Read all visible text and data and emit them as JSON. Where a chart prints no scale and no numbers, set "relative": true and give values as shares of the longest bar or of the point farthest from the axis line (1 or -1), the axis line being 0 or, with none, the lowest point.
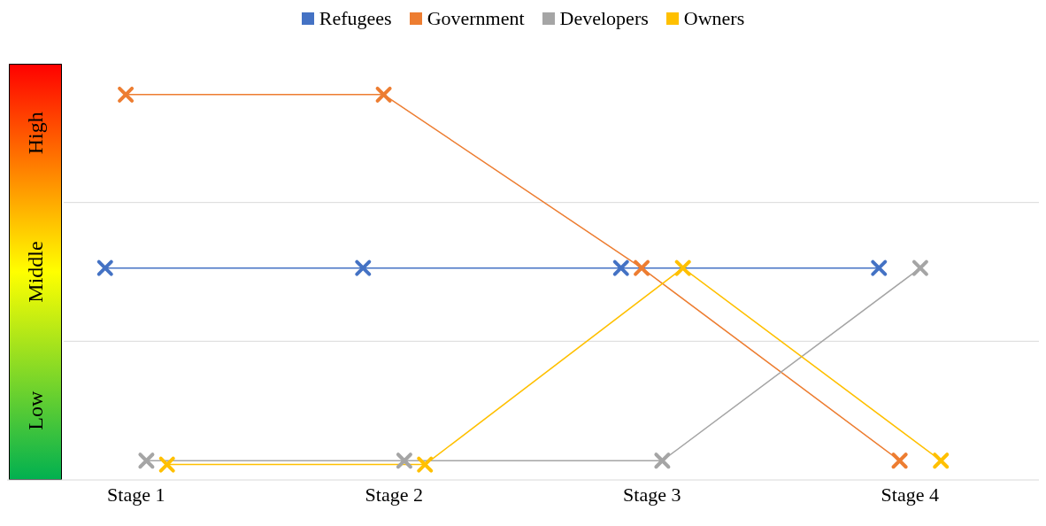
{
  "chart_data": {
    "type": "line",
    "relative": true,
    "categories": [
      "Stage 1",
      "Stage 2",
      "Stage 3",
      "Stage 4"
    ],
    "series": [
      {
        "name": "Refugees",
        "color": "#4472c4",
        "values": [
          0.55,
          0.55,
          0.55,
          0.55
        ]
      },
      {
        "name": "Government",
        "color": "#ed7d31",
        "values": [
          1,
          1,
          0.55,
          0.05
        ]
      },
      {
        "name": "Developers",
        "color": "#a5a5a5",
        "values": [
          0.05,
          0.05,
          0.05,
          0.55
        ]
      },
      {
        "name": "Owners",
        "color": "#ffc000",
        "values": [
          0.04,
          0.04,
          0.55,
          0.05
        ]
      }
    ],
    "ref_lines": [
      {
        "axis": "y",
        "value": 0.36,
        "color": "#d9d9d9"
      },
      {
        "axis": "y",
        "value": 0.72,
        "color": "#d9d9d9"
      }
    ],
    "annotations": [
      "Low",
      "Middle",
      "High"
    ],
    "legend": "top",
    "marker": "cross",
    "line_style": "solid"
  }
}
